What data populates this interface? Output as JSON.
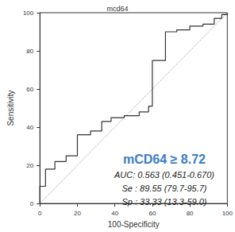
{
  "chart_data": {
    "type": "line",
    "title": "mcd64",
    "x_label": "100-Specificity",
    "y_label": "Sensitivity",
    "xlim": [
      0,
      100
    ],
    "xticks": [
      0,
      20,
      40,
      60,
      80,
      100
    ],
    "ylim": [
      0,
      100
    ],
    "yticks": [
      0,
      20,
      40,
      60,
      80,
      100
    ],
    "grid": false,
    "series": [
      {
        "color": "#333333",
        "line_style": "solid",
        "x": [
          0,
          0,
          3,
          3,
          8,
          8,
          14,
          14,
          20,
          20,
          27,
          27,
          33,
          33,
          38,
          38,
          45,
          45,
          53,
          53,
          58,
          58,
          60,
          60,
          67,
          67,
          73,
          73,
          80,
          80,
          87,
          87,
          93,
          93,
          97,
          97,
          100,
          100
        ],
        "values": [
          0,
          9,
          9,
          18,
          18,
          22,
          22,
          25,
          25,
          36,
          36,
          38,
          38,
          43,
          43,
          45,
          45,
          46,
          46,
          48,
          48,
          51,
          51,
          75,
          75,
          90,
          90,
          91,
          91,
          93,
          93,
          94,
          94,
          97,
          97,
          99,
          99,
          100
        ]
      },
      {
        "color": "#999999",
        "line_style": "dotted",
        "x": [
          0,
          100
        ],
        "values": [
          0,
          100
        ]
      }
    ],
    "annotations": [
      {
        "text": "mCD64 ≥ 8.72",
        "color": "#3b7dc4"
      },
      {
        "text": "AUC: 0.563 (0.451-0.670)",
        "color": "#222222"
      },
      {
        "text": "Se : 89.55 (79.7-95.7)",
        "color": "#222222"
      },
      {
        "text": "Sp : 33.33 (13.3-59.0)",
        "color": "#222222"
      }
    ]
  }
}
